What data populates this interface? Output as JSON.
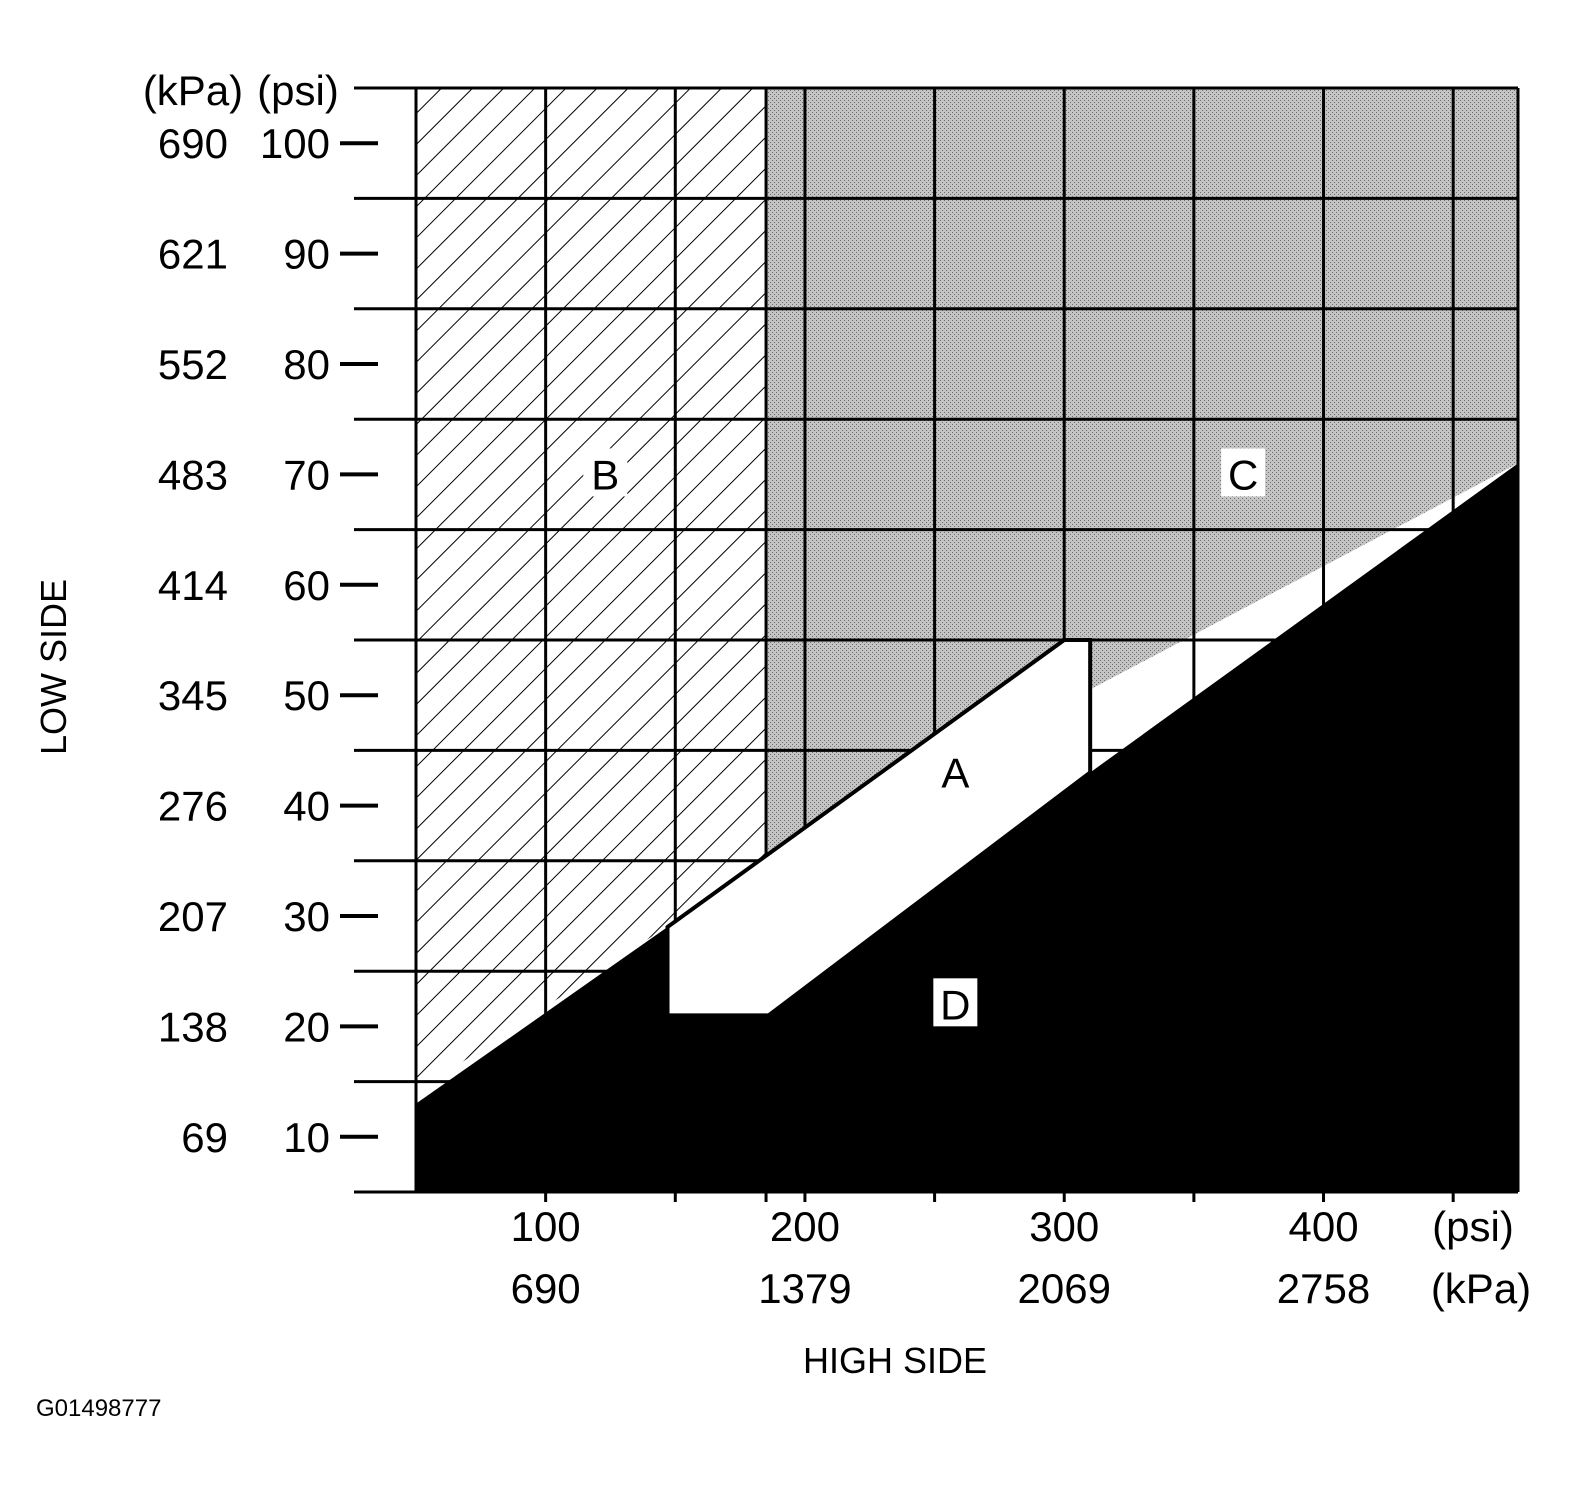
{
  "chart_data": {
    "type": "area",
    "xlabel": "HIGH SIDE",
    "ylabel": "LOW SIDE",
    "x_unit_primary": "(psi)",
    "x_unit_secondary": "(kPa)",
    "y_unit_primary": "(psi)",
    "y_unit_secondary": "(kPa)",
    "xlim": [
      50,
      475
    ],
    "ylim": [
      5,
      105
    ],
    "x_ticks": [
      {
        "psi": 100,
        "psi_label": "100",
        "kpa_label": "690"
      },
      {
        "psi": 200,
        "psi_label": "200",
        "kpa_label": "1379"
      },
      {
        "psi": 300,
        "psi_label": "300",
        "kpa_label": "2069"
      },
      {
        "psi": 400,
        "psi_label": "400",
        "kpa_label": "2758"
      }
    ],
    "y_ticks": [
      {
        "psi": 100,
        "psi_label": "100",
        "kpa_label": "690"
      },
      {
        "psi": 90,
        "psi_label": "90",
        "kpa_label": "621"
      },
      {
        "psi": 80,
        "psi_label": "80",
        "kpa_label": "552"
      },
      {
        "psi": 70,
        "psi_label": "70",
        "kpa_label": "483"
      },
      {
        "psi": 60,
        "psi_label": "60",
        "kpa_label": "414"
      },
      {
        "psi": 50,
        "psi_label": "50",
        "kpa_label": "345"
      },
      {
        "psi": 40,
        "psi_label": "40",
        "kpa_label": "276"
      },
      {
        "psi": 30,
        "psi_label": "30",
        "kpa_label": "207"
      },
      {
        "psi": 20,
        "psi_label": "20",
        "kpa_label": "138"
      },
      {
        "psi": 10,
        "psi_label": "10",
        "kpa_label": "69"
      }
    ],
    "grid_x": [
      50,
      100,
      150,
      185,
      200,
      250,
      300,
      350,
      400,
      450,
      475
    ],
    "grid_y": [
      5,
      15,
      25,
      35,
      45,
      55,
      65,
      75,
      85,
      95,
      105
    ],
    "regions": [
      {
        "label": "A",
        "fill": "white",
        "label_at": [
          258,
          43
        ],
        "points": [
          [
            147,
            29
          ],
          [
            147,
            21
          ],
          [
            186,
            21
          ],
          [
            310,
            43
          ],
          [
            310,
            55
          ],
          [
            300,
            55
          ],
          [
            147,
            29
          ]
        ]
      },
      {
        "label": "B",
        "fill": "hatched",
        "label_at": [
          123,
          70
        ],
        "points": [
          [
            50,
            105
          ],
          [
            185,
            105
          ],
          [
            185,
            35
          ],
          [
            50,
            14
          ]
        ]
      },
      {
        "label": "C",
        "fill": "stippled",
        "label_at": [
          369,
          70
        ],
        "points": [
          [
            185,
            105
          ],
          [
            475,
            105
          ],
          [
            475,
            71
          ],
          [
            185,
            35
          ]
        ]
      },
      {
        "label": "D",
        "fill": "black",
        "label_at": [
          258,
          22
        ],
        "points": [
          [
            50,
            5
          ],
          [
            475,
            5
          ],
          [
            475,
            71
          ],
          [
            310,
            43
          ],
          [
            186,
            21
          ],
          [
            147,
            21
          ],
          [
            147,
            29
          ],
          [
            50,
            13
          ]
        ]
      }
    ],
    "grid": true,
    "legend": "none"
  },
  "figure_id": "G01498777",
  "colors": {
    "ink": "#000000",
    "stipple": "#bdbdbd",
    "background": "#ffffff"
  }
}
